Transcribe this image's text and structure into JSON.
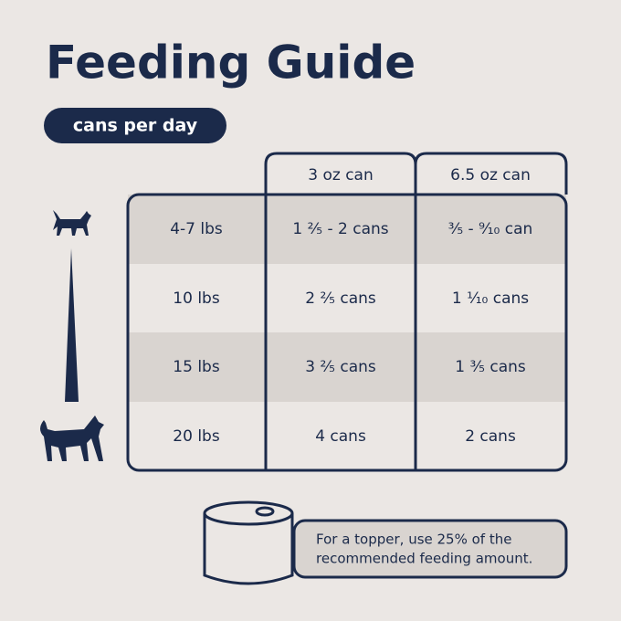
{
  "header": {
    "title": "Feeding Guide",
    "badge": "cans per day"
  },
  "table": {
    "columns": [
      "3 oz can",
      "6.5 oz can"
    ],
    "rows": [
      [
        "4-7 lbs",
        "1 ²⁄₅ - 2 cans",
        "³⁄₅ - ⁹⁄₁₀ can"
      ],
      [
        "10 lbs",
        "2 ²⁄₅ cans",
        "1 ¹⁄₁₀ cans"
      ],
      [
        "15 lbs",
        "3 ²⁄₅ cans",
        "1 ³⁄₅ cans"
      ],
      [
        "20 lbs",
        "4 cans",
        "2 cans"
      ]
    ]
  },
  "note": {
    "lines": [
      "For a topper, use 25% of the",
      "recommended feeding amount."
    ]
  }
}
